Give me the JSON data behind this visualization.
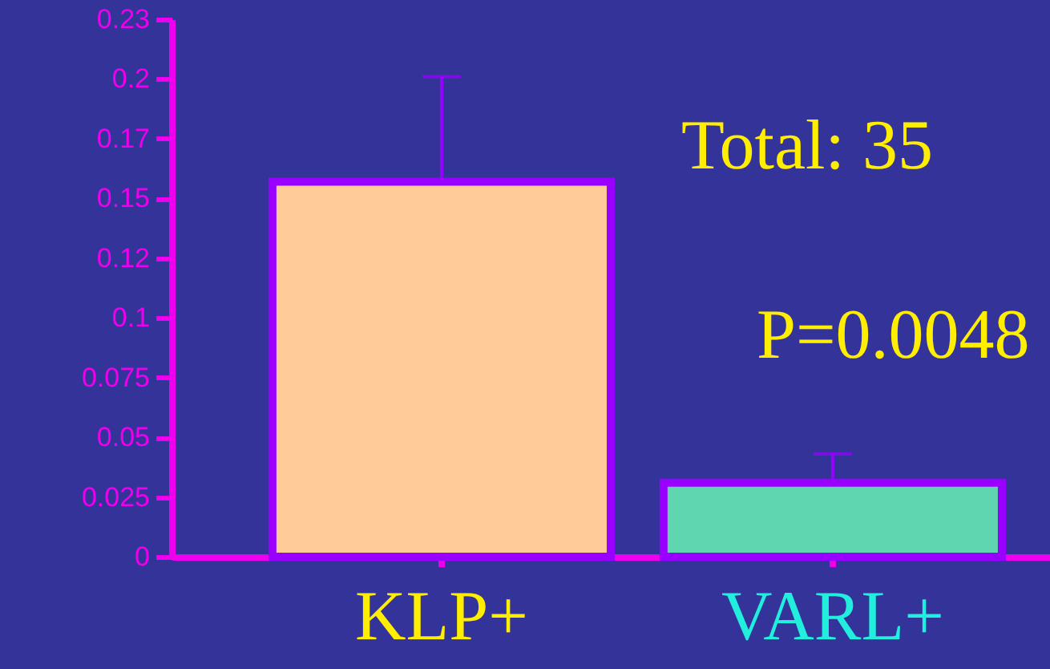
{
  "chart_data": {
    "type": "bar",
    "categories": [
      "KLP+",
      "VARL+"
    ],
    "values": [
      0.157,
      0.031
    ],
    "errors": [
      0.044,
      0.012
    ],
    "colors": [
      "#ffcc99",
      "#60d6b0"
    ],
    "ylim": [
      0,
      0.225
    ],
    "yticks": [
      0,
      0.025,
      0.05,
      0.075,
      0.1,
      {
        "value": 0.125,
        "label": "0.12"
      },
      0.15,
      {
        "value": 0.175,
        "label": "0.17"
      },
      0.2,
      {
        "value": 0.225,
        "label": "0.23"
      }
    ],
    "grid": false,
    "annotations": [
      "Total: 35",
      "P=0.0048"
    ]
  }
}
